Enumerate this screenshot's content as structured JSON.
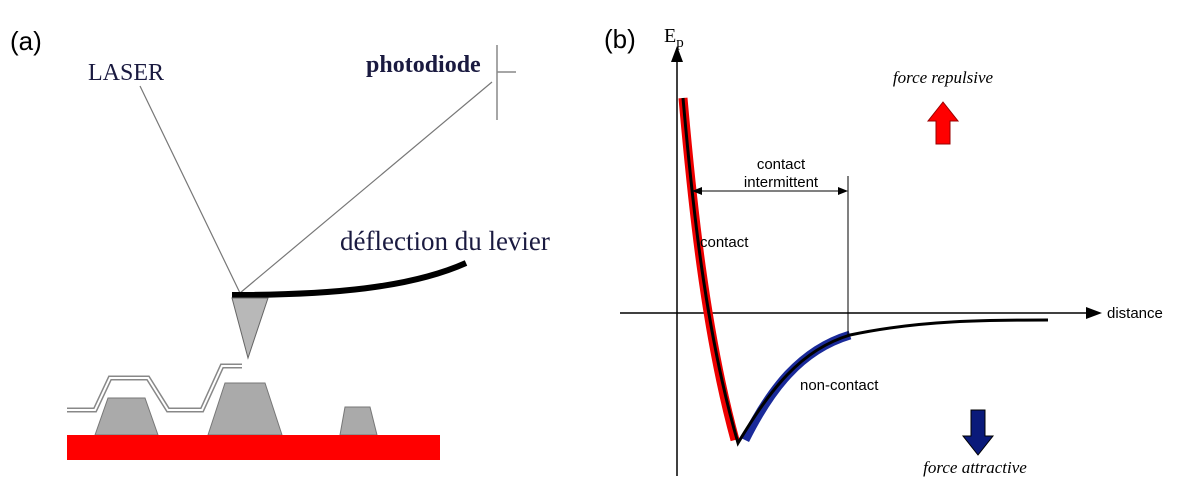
{
  "panel_a": {
    "label": "(a)",
    "laser": "LASER",
    "photodiode": "photodiode",
    "deflection": "déflection du levier"
  },
  "panel_b": {
    "label": "(b)",
    "y_axis": {
      "main": "E",
      "sub": "p"
    },
    "x_axis": "distance",
    "repulsive": "force repulsive",
    "attractive": "force attractive",
    "intermittent": [
      "contact",
      "intermittent"
    ],
    "contact": "contact",
    "non_contact": "non-contact"
  }
}
